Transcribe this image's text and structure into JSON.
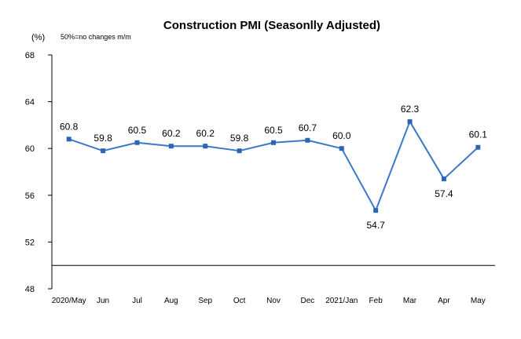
{
  "chart_data": {
    "type": "line",
    "title": "Construction PMI (Seasonlly Adjusted)",
    "ylabel": "(%)",
    "note": "50%=no changes  m/m",
    "ylim": [
      48,
      68
    ],
    "yticks": [
      48,
      52,
      56,
      60,
      64,
      68
    ],
    "categories": [
      "2020/May",
      "Jun",
      "Jul",
      "Aug",
      "Sep",
      "Oct",
      "Nov",
      "Dec",
      "2021/Jan",
      "Feb",
      "Mar",
      "Apr",
      "May"
    ],
    "series": [
      {
        "values": [
          60.8,
          59.8,
          60.5,
          60.2,
          60.2,
          59.8,
          60.5,
          60.7,
          60.0,
          54.7,
          62.3,
          57.4,
          60.1
        ]
      }
    ],
    "data_labels": [
      "60.8",
      "59.8",
      "60.5",
      "60.2",
      "60.2",
      "59.8",
      "60.5",
      "60.7",
      "60.0",
      "54.7",
      "62.3",
      "57.4",
      "60.1"
    ],
    "label_position": [
      "above",
      "above",
      "above",
      "above",
      "above",
      "above",
      "above",
      "above",
      "above",
      "below",
      "above",
      "below",
      "above"
    ],
    "grid": false,
    "legend": "none",
    "colors": {
      "line": "#3C78C8",
      "marker": "#2D64B4",
      "axis": "#000000"
    }
  }
}
